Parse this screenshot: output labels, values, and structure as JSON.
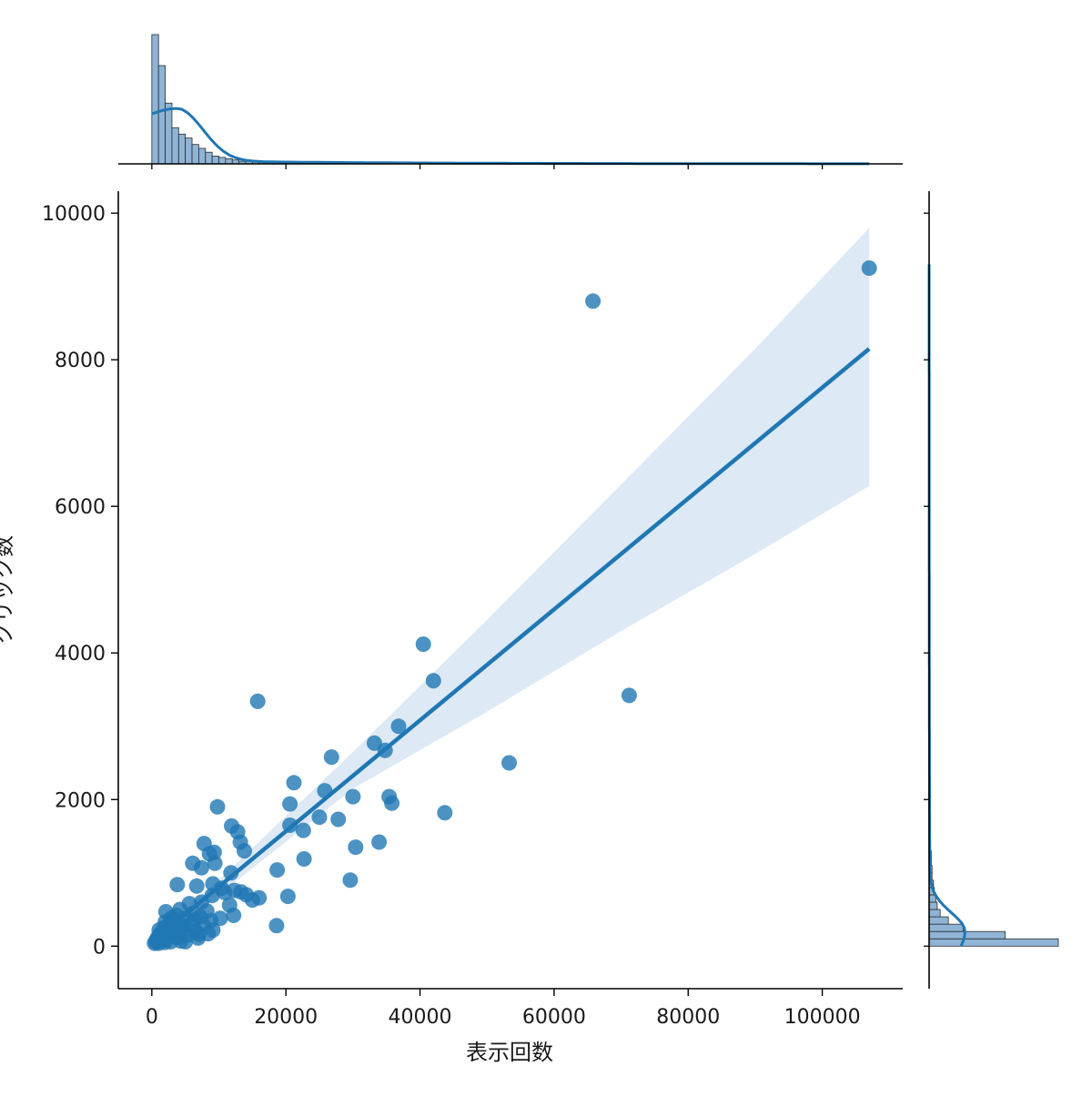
{
  "colors": {
    "series": "#1f77b4",
    "band": "#c6dbef",
    "hist_fill": "#8fb4d6",
    "axis": "#000000"
  },
  "chart_data": {
    "type": "scatter",
    "subtype": "joint-regression-plot",
    "title": "",
    "xlabel": "表示回数",
    "ylabel": "クリック数",
    "xlim": [
      -5000,
      112000
    ],
    "ylim": [
      -580,
      10300
    ],
    "x_ticks": [
      0,
      20000,
      40000,
      60000,
      80000,
      100000
    ],
    "x_tick_labels": [
      "0",
      "20000",
      "40000",
      "60000",
      "80000",
      "100000"
    ],
    "y_ticks": [
      0,
      2000,
      4000,
      6000,
      8000,
      10000
    ],
    "y_tick_labels": [
      "0",
      "2000",
      "4000",
      "6000",
      "8000",
      "10000"
    ],
    "grid": false,
    "legend": "none",
    "regression": {
      "x": [
        0,
        107000
      ],
      "y": [
        55,
        8150
      ],
      "ci_upper": [
        [
          0,
          130
        ],
        [
          10000,
          900
        ],
        [
          30000,
          2650
        ],
        [
          50000,
          4450
        ],
        [
          70000,
          6300
        ],
        [
          90000,
          8150
        ],
        [
          107000,
          9800
        ]
      ],
      "ci_lower": [
        [
          0,
          -20
        ],
        [
          10000,
          700
        ],
        [
          30000,
          2150
        ],
        [
          50000,
          3200
        ],
        [
          70000,
          4300
        ],
        [
          90000,
          5350
        ],
        [
          107000,
          6280
        ]
      ]
    },
    "points": [
      [
        107000,
        9250
      ],
      [
        65800,
        8800
      ],
      [
        40500,
        4120
      ],
      [
        42000,
        3620
      ],
      [
        71200,
        3420
      ],
      [
        15800,
        3340
      ],
      [
        36800,
        3000
      ],
      [
        33200,
        2770
      ],
      [
        34800,
        2670
      ],
      [
        26800,
        2580
      ],
      [
        53300,
        2500
      ],
      [
        21200,
        2230
      ],
      [
        25800,
        2120
      ],
      [
        35400,
        2040
      ],
      [
        30000,
        2040
      ],
      [
        35800,
        1950
      ],
      [
        20600,
        1940
      ],
      [
        9800,
        1900
      ],
      [
        43700,
        1820
      ],
      [
        25000,
        1760
      ],
      [
        27800,
        1730
      ],
      [
        20600,
        1650
      ],
      [
        11900,
        1640
      ],
      [
        22600,
        1580
      ],
      [
        12800,
        1560
      ],
      [
        13200,
        1420
      ],
      [
        33900,
        1420
      ],
      [
        7800,
        1400
      ],
      [
        30400,
        1350
      ],
      [
        13800,
        1300
      ],
      [
        8600,
        1260
      ],
      [
        9300,
        1280
      ],
      [
        22700,
        1190
      ],
      [
        6100,
        1130
      ],
      [
        9400,
        1130
      ],
      [
        7400,
        1070
      ],
      [
        11800,
        1000
      ],
      [
        18700,
        1040
      ],
      [
        29600,
        900
      ],
      [
        9100,
        850
      ],
      [
        3800,
        840
      ],
      [
        6700,
        820
      ],
      [
        10400,
        790
      ],
      [
        12300,
        760
      ],
      [
        13300,
        740
      ],
      [
        10900,
        730
      ],
      [
        16000,
        660
      ],
      [
        20300,
        680
      ],
      [
        15000,
        630
      ],
      [
        14100,
        700
      ],
      [
        9000,
        690
      ],
      [
        11600,
        560
      ],
      [
        7400,
        600
      ],
      [
        5600,
        580
      ],
      [
        12200,
        420
      ],
      [
        10200,
        380
      ],
      [
        18600,
        280
      ],
      [
        8200,
        480
      ],
      [
        6200,
        450
      ],
      [
        4200,
        500
      ],
      [
        2100,
        470
      ],
      [
        5100,
        380
      ],
      [
        3400,
        360
      ],
      [
        2600,
        300
      ],
      [
        1800,
        250
      ],
      [
        4600,
        280
      ],
      [
        7600,
        300
      ],
      [
        6600,
        200
      ],
      [
        3000,
        180
      ],
      [
        1200,
        160
      ],
      [
        900,
        120
      ],
      [
        1500,
        90
      ],
      [
        2300,
        100
      ],
      [
        600,
        60
      ],
      [
        400,
        40
      ],
      [
        3700,
        120
      ],
      [
        5300,
        150
      ],
      [
        4300,
        70
      ],
      [
        2800,
        60
      ],
      [
        1900,
        50
      ],
      [
        6900,
        110
      ],
      [
        8400,
        170
      ],
      [
        9100,
        220
      ],
      [
        5000,
        60
      ],
      [
        1100,
        220
      ],
      [
        2000,
        330
      ],
      [
        3600,
        420
      ],
      [
        4900,
        240
      ],
      [
        7200,
        400
      ],
      [
        8800,
        350
      ],
      [
        700,
        90
      ],
      [
        1500,
        180
      ],
      [
        2500,
        150
      ],
      [
        3200,
        240
      ],
      [
        4000,
        200
      ],
      [
        5800,
        300
      ],
      [
        6400,
        360
      ],
      [
        7000,
        160
      ],
      [
        1000,
        40
      ],
      [
        2900,
        380
      ]
    ],
    "marginal_x": {
      "bin_width": 1000,
      "counts": [
        100,
        76,
        47,
        28,
        23,
        20,
        15,
        12,
        9,
        6,
        5,
        4,
        3,
        2,
        2,
        2,
        1,
        1,
        1,
        1,
        2,
        1,
        1,
        0,
        1,
        0,
        1,
        0,
        0,
        1,
        1,
        0,
        0,
        0,
        1,
        1,
        0,
        0,
        0,
        0,
        0,
        0,
        1
      ],
      "kde_peak_x": 3800
    },
    "marginal_y": {
      "bin_width": 100,
      "counts": [
        175,
        103,
        46,
        26,
        15,
        11,
        9,
        7,
        6,
        4,
        4,
        3,
        3,
        2,
        1,
        1,
        1,
        1,
        1,
        1
      ]
    }
  }
}
